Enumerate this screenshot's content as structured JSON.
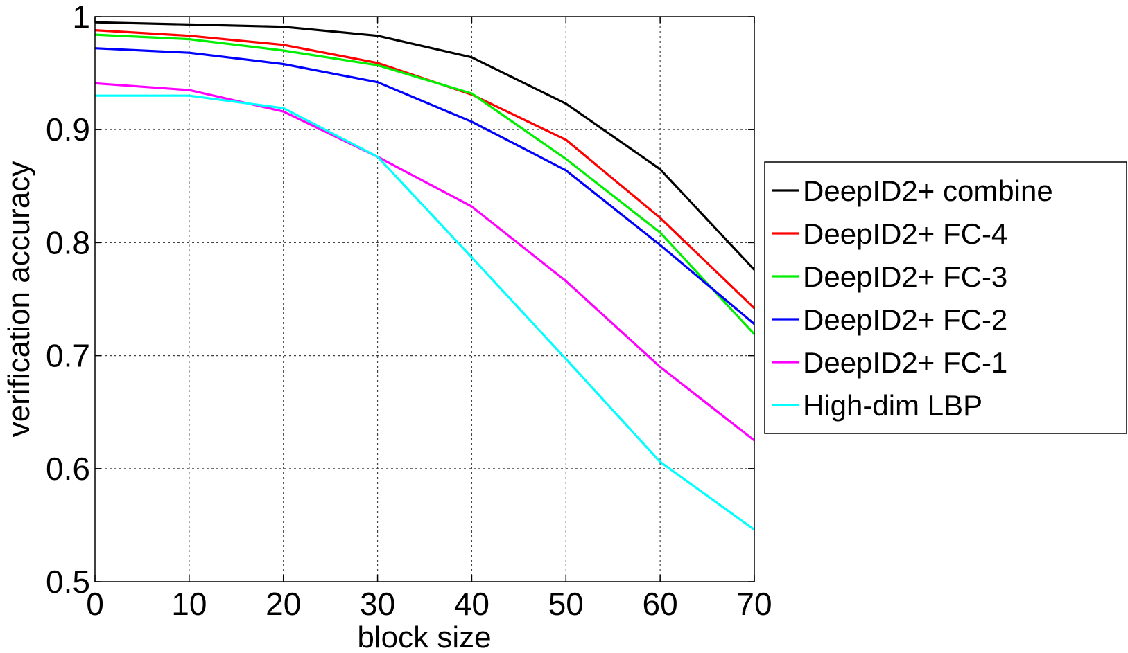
{
  "chart_data": {
    "type": "line",
    "title": "",
    "xlabel": "block size",
    "ylabel": "verification accuracy",
    "xlim": [
      0,
      70
    ],
    "ylim": [
      0.5,
      1
    ],
    "xticks": [
      0,
      10,
      20,
      30,
      40,
      50,
      60,
      70
    ],
    "yticks": [
      0.5,
      0.6,
      0.7,
      0.8,
      0.9,
      1
    ],
    "ytick_labels": [
      "0.5",
      "0.6",
      "0.7",
      "0.8",
      "0.9",
      "1"
    ],
    "grid": true,
    "legend_position": "right, outside plot",
    "x": [
      0,
      10,
      20,
      30,
      40,
      50,
      60,
      70
    ],
    "series": [
      {
        "name": "DeepID2+ combine",
        "color": "#000000",
        "values": [
          0.995,
          0.993,
          0.991,
          0.983,
          0.964,
          0.923,
          0.865,
          0.776
        ]
      },
      {
        "name": "DeepID2+ FC-4",
        "color": "#ff0000",
        "values": [
          0.988,
          0.983,
          0.975,
          0.959,
          0.931,
          0.891,
          0.822,
          0.742
        ]
      },
      {
        "name": "DeepID2+ FC-3",
        "color": "#00ee00",
        "values": [
          0.984,
          0.98,
          0.97,
          0.957,
          0.932,
          0.874,
          0.809,
          0.719
        ]
      },
      {
        "name": "DeepID2+ FC-2",
        "color": "#0000ff",
        "values": [
          0.972,
          0.968,
          0.958,
          0.942,
          0.907,
          0.864,
          0.798,
          0.728
        ]
      },
      {
        "name": "DeepID2+ FC-1",
        "color": "#ff00ff",
        "values": [
          0.941,
          0.935,
          0.916,
          0.876,
          0.832,
          0.766,
          0.69,
          0.625
        ]
      },
      {
        "name": "High-dim LBP",
        "color": "#00ffff",
        "values": [
          0.93,
          0.93,
          0.919,
          0.876,
          0.787,
          0.697,
          0.606,
          0.546
        ]
      }
    ]
  }
}
